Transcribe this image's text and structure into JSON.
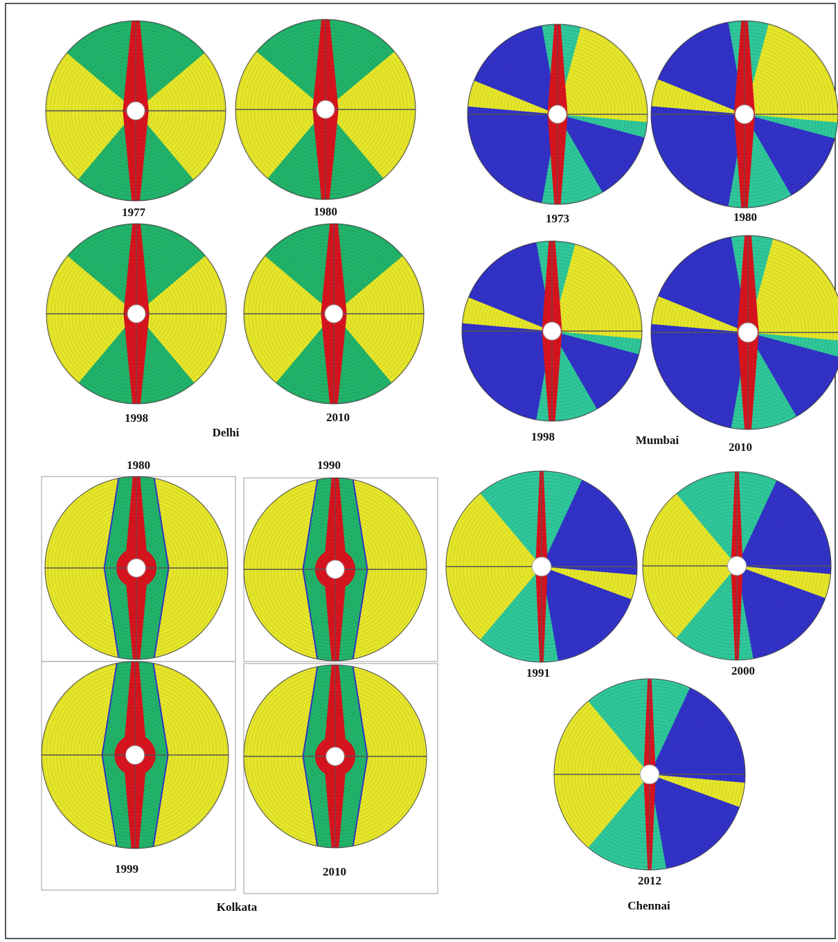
{
  "panels": [
    {
      "city": "Delhi",
      "years": [
        "1977",
        "1980",
        "1998",
        "2010"
      ]
    },
    {
      "city": "Mumbai",
      "years": [
        "1973",
        "1980",
        "1998",
        "2010"
      ]
    },
    {
      "city": "Kolkata",
      "years": [
        "1980",
        "1990",
        "1999",
        "2010"
      ]
    },
    {
      "city": "Chennai",
      "years": [
        "1991",
        "2000",
        "2012"
      ]
    }
  ]
}
